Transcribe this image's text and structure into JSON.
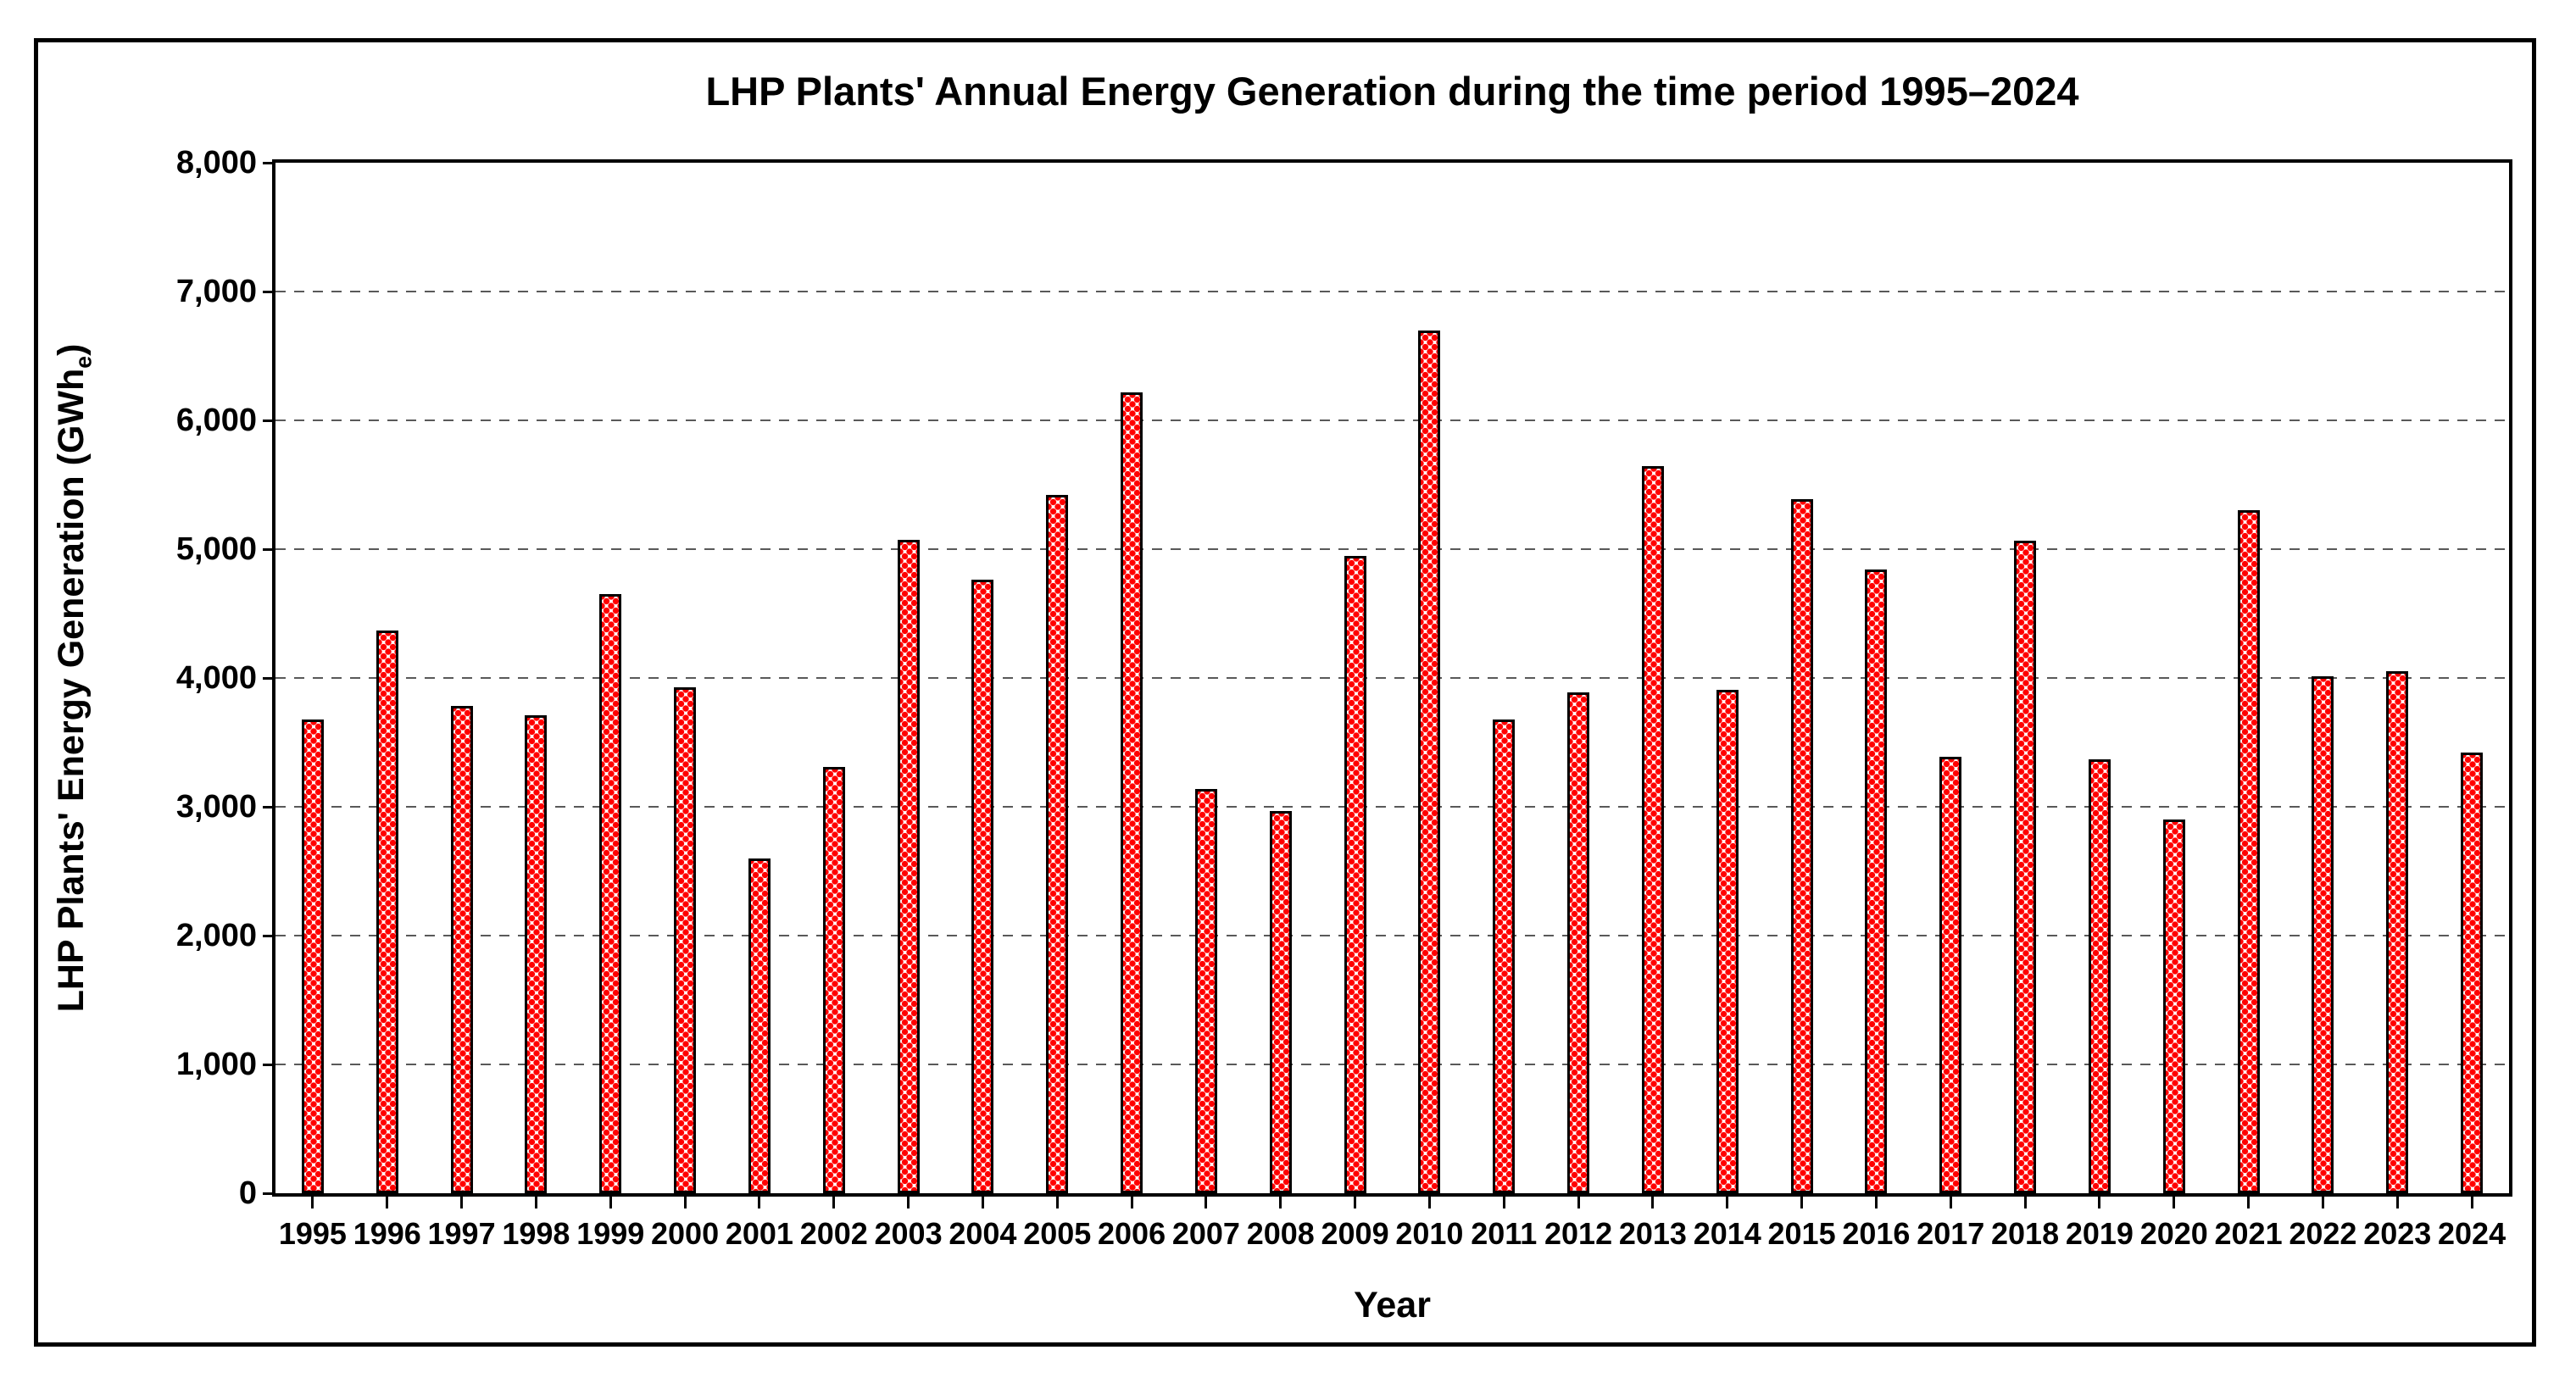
{
  "chart_data": {
    "type": "bar",
    "title": "LHP Plants' Annual Energy Generation during the time period 1995–2024",
    "xlabel": "Year",
    "ylabel_prefix": "LHP Plants' Energy Generation (GWh",
    "ylabel_sub": "e",
    "ylabel_suffix": ")",
    "categories": [
      "1995",
      "1996",
      "1997",
      "1998",
      "1999",
      "2000",
      "2001",
      "2002",
      "2003",
      "2004",
      "2005",
      "2006",
      "2007",
      "2008",
      "2009",
      "2010",
      "2011",
      "2012",
      "2013",
      "2014",
      "2015",
      "2016",
      "2017",
      "2018",
      "2019",
      "2020",
      "2021",
      "2022",
      "2023",
      "2024"
    ],
    "values": [
      3680,
      4370,
      3780,
      3710,
      4650,
      3930,
      2600,
      3310,
      5070,
      4760,
      5420,
      6220,
      3140,
      2970,
      4950,
      6700,
      3680,
      3890,
      5645,
      3905,
      5390,
      4845,
      3390,
      5065,
      3370,
      2900,
      5300,
      4010,
      4055,
      3420
    ],
    "ylim": [
      0,
      8000
    ],
    "ytick_step": 1000,
    "ytick_labels": [
      "0",
      "1,000",
      "2,000",
      "3,000",
      "4,000",
      "5,000",
      "6,000",
      "7,000",
      "8,000"
    ],
    "grid": "horizontal-dashed",
    "legend_position": "none",
    "colors": {
      "bar_dot": "#FF0000",
      "bar_background": "#FFFFFF",
      "bar_border": "#000000",
      "gridline": "#595959",
      "axis": "#000000",
      "text": "#000000"
    }
  }
}
